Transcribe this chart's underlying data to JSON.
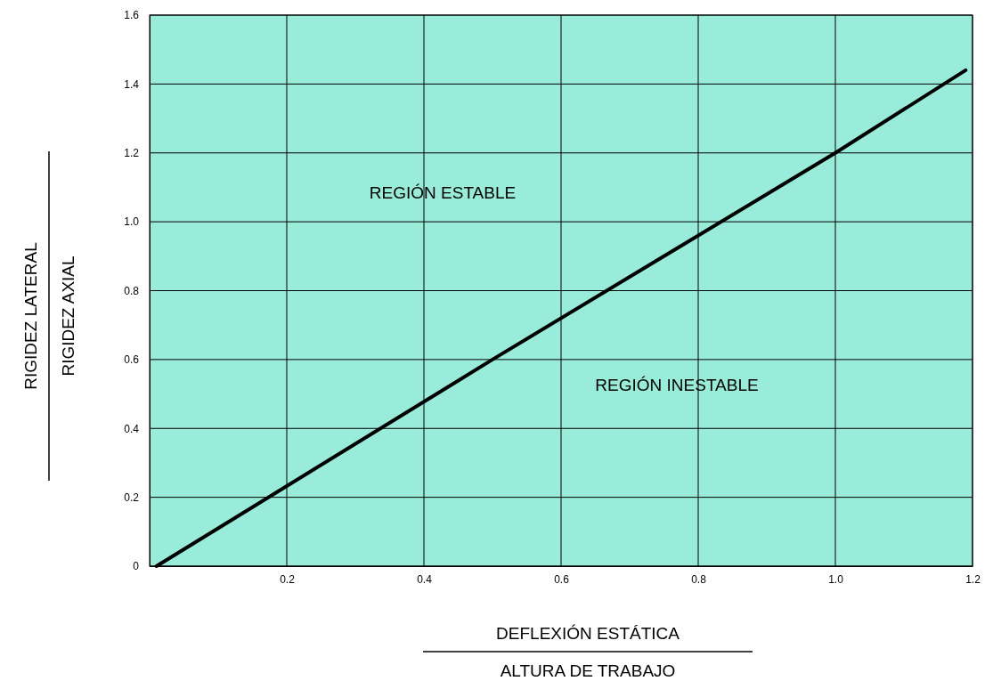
{
  "chart_data": {
    "type": "line",
    "xlabel": "DEFLEXIÓN ESTÁTICA\nALTURA DE TRABAJO",
    "ylabel": "RIGIDEZ LATERAL\nRIGIDEZ AXIAL",
    "x": [
      0.01,
      0.5,
      1.0,
      1.19
    ],
    "series": [
      {
        "color": "#000000",
        "values": [
          0,
          0.6,
          1.2,
          1.44
        ]
      }
    ],
    "xlim": [
      0,
      1.2
    ],
    "ylim": [
      0,
      1.6
    ],
    "xticks": [
      0.2,
      0.4,
      0.6,
      0.8,
      {
        "value": 1,
        "label": "1.0"
      },
      1.2
    ],
    "yticks": [
      0,
      0.2,
      0.4,
      0.6,
      0.8,
      {
        "value": 1,
        "label": "1.0"
      },
      1.2,
      1.4,
      1.6
    ],
    "grid": true,
    "marker": "none",
    "line_style": "solid",
    "annotations": [
      "REGIÓN ESTABLE",
      "REGIÓN INESTABLE"
    ]
  }
}
